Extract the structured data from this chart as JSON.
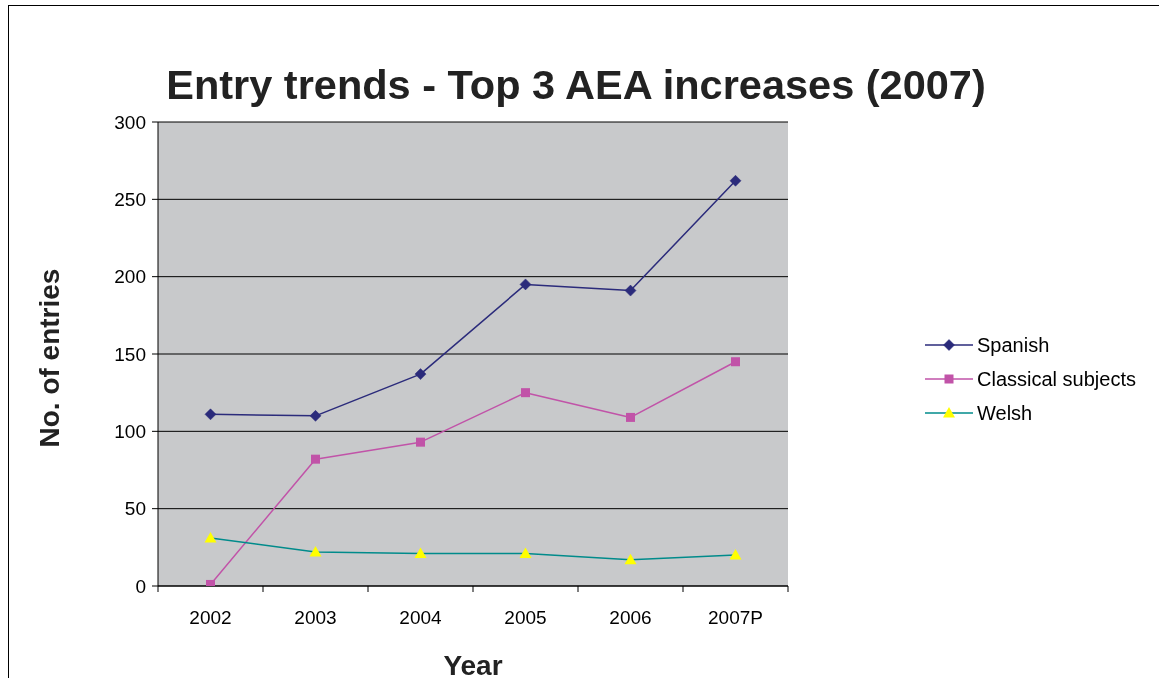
{
  "chart_data": {
    "type": "line",
    "title": "Entry trends - Top 3 AEA increases (2007)",
    "xlabel": "Year",
    "ylabel": "No. of entries",
    "categories": [
      "2002",
      "2003",
      "2004",
      "2005",
      "2006",
      "2007P"
    ],
    "series": [
      {
        "name": "Spanish",
        "color": "#2b2b7b",
        "marker": "diamond",
        "values": [
          111,
          110,
          137,
          195,
          191,
          262
        ]
      },
      {
        "name": "Classical subjects",
        "color": "#c153a8",
        "marker": "square",
        "values": [
          1,
          82,
          93,
          125,
          109,
          145
        ]
      },
      {
        "name": "Welsh",
        "color": "#008b8b",
        "colors": [
          "#ffff00",
          "#ffff00",
          "#ffff00",
          "#ffff00",
          "#ffff00",
          "#ffff00"
        ],
        "marker": "triangle",
        "values": [
          31,
          22,
          21,
          21,
          17,
          20
        ]
      }
    ],
    "ylim": [
      0,
      300
    ],
    "yticks": [
      0,
      50,
      100,
      150,
      200,
      250,
      300
    ],
    "grid": "y",
    "legend": "right",
    "line_style": "solid"
  }
}
